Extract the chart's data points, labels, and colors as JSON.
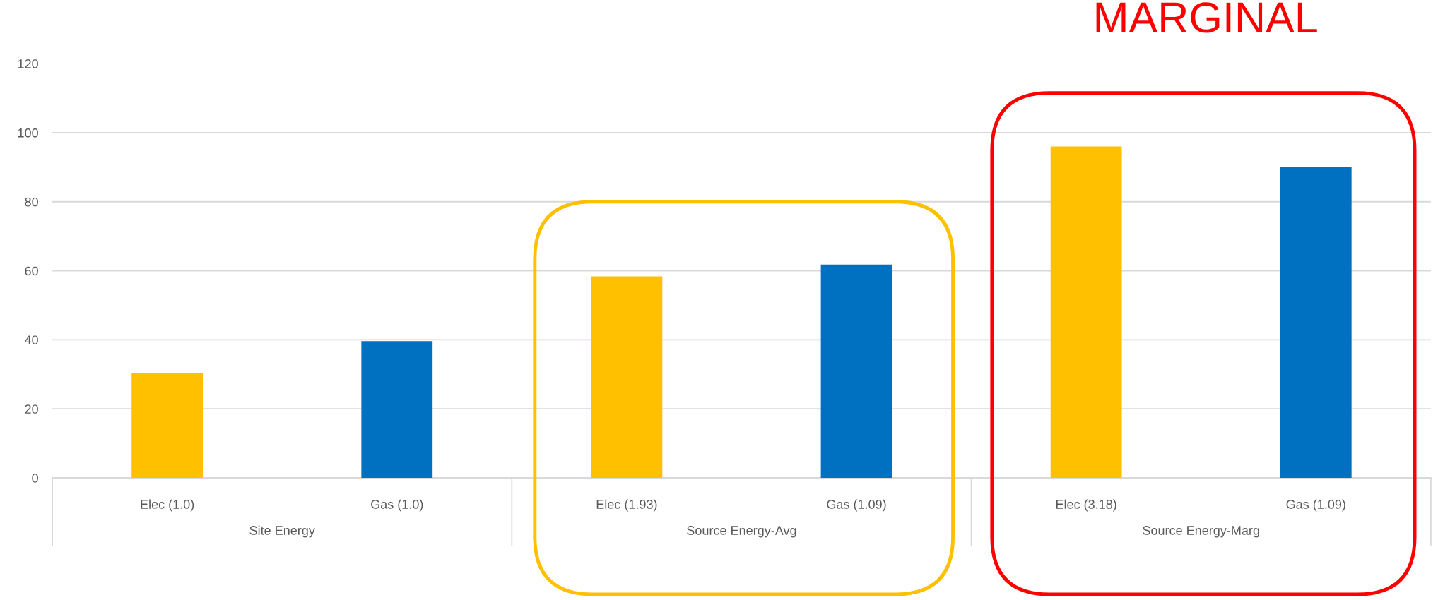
{
  "chart_data": {
    "type": "bar",
    "categories": [
      "Elec (1.0)",
      "Gas (1.0)",
      "Elec (1.93)",
      "Gas (1.09)",
      "Elec (3.18)",
      "Gas (1.09)"
    ],
    "values": [
      30.4,
      39.6,
      58.4,
      61.8,
      96.0,
      90.1
    ],
    "colors": [
      "#ffc000",
      "#0070c0",
      "#ffc000",
      "#0070c0",
      "#ffc000",
      "#0070c0"
    ],
    "ylim": [
      0,
      120
    ],
    "yticks": [
      0,
      20,
      40,
      60,
      80,
      100,
      120
    ],
    "grid": "y",
    "annotations": [
      "Site Energy",
      "Source Energy-Avg",
      "Source Energy-Marg",
      "MARGINAL"
    ]
  }
}
